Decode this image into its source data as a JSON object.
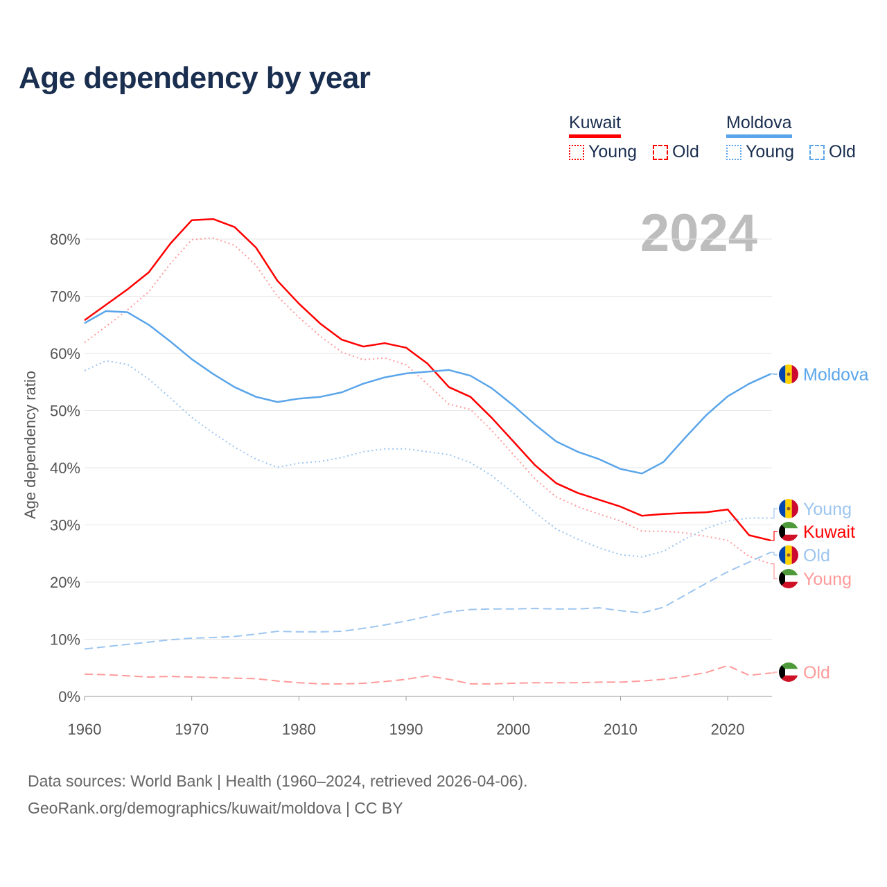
{
  "title": "Age dependency by year",
  "legend": {
    "kuwait": {
      "label": "Kuwait",
      "young": "Young",
      "old": "Old"
    },
    "moldova": {
      "label": "Moldova",
      "young": "Young",
      "old": "Old"
    }
  },
  "year_watermark": "2024",
  "source": {
    "line1": "Data sources: World Bank | Health (1960–2024, retrieved 2026-04-06).",
    "line2": "GeoRank.org/demographics/kuwait/moldova | CC BY"
  },
  "colors": {
    "kuwait": "#ff0000",
    "kuwait_light": "#ff9a9a",
    "moldova": "#5aa5ea",
    "moldova_light": "#9cc5f0",
    "title": "#1a2e4f"
  },
  "chart_data": {
    "type": "line",
    "title": "Age dependency by year",
    "xlabel": "",
    "ylabel": "Age dependency ratio",
    "xlim": [
      1960,
      2024
    ],
    "ylim": [
      0,
      80
    ],
    "x_ticks": [
      "1960",
      "1970",
      "1980",
      "1990",
      "2000",
      "2010",
      "2020"
    ],
    "y_ticks": [
      "0%",
      "10%",
      "20%",
      "30%",
      "40%",
      "50%",
      "60%",
      "70%",
      "80%"
    ],
    "grid": true,
    "x": [
      1960,
      1962,
      1964,
      1966,
      1968,
      1970,
      1972,
      1974,
      1976,
      1978,
      1980,
      1982,
      1984,
      1986,
      1988,
      1990,
      1992,
      1994,
      1996,
      1998,
      2000,
      2002,
      2004,
      2006,
      2008,
      2010,
      2012,
      2014,
      2016,
      2018,
      2020,
      2022,
      2024
    ],
    "series": [
      {
        "name": "Kuwait",
        "end_label": "Kuwait",
        "country": "kuwait",
        "style": "solid",
        "color": "#ff0000",
        "values": [
          65.8,
          68.5,
          71.2,
          74.2,
          79.2,
          83.3,
          83.5,
          82.1,
          78.5,
          72.7,
          68.7,
          65.2,
          62.4,
          61.2,
          61.8,
          61.0,
          58.2,
          54.1,
          52.4,
          48.7,
          44.6,
          40.5,
          37.3,
          35.6,
          34.4,
          33.2,
          31.6,
          31.9,
          32.1,
          32.2,
          32.7,
          28.2,
          27.3
        ]
      },
      {
        "name": "Kuwait Young",
        "end_label": "Young",
        "country": "kuwait",
        "style": "dotted",
        "color": "#ff9a9a",
        "values": [
          61.9,
          64.7,
          67.6,
          70.8,
          75.7,
          79.9,
          80.2,
          78.9,
          75.4,
          70.0,
          66.3,
          63.0,
          60.2,
          58.9,
          59.2,
          58.0,
          54.6,
          51.1,
          50.2,
          46.5,
          42.3,
          38.1,
          34.9,
          33.2,
          31.9,
          30.7,
          28.9,
          28.9,
          28.6,
          28.0,
          27.3,
          24.5,
          23.2
        ]
      },
      {
        "name": "Kuwait Old",
        "end_label": "Old",
        "country": "kuwait",
        "style": "dashed",
        "color": "#ff9a9a",
        "values": [
          3.9,
          3.8,
          3.6,
          3.4,
          3.5,
          3.4,
          3.3,
          3.2,
          3.1,
          2.7,
          2.4,
          2.2,
          2.2,
          2.3,
          2.6,
          3.0,
          3.6,
          3.0,
          2.2,
          2.2,
          2.3,
          2.4,
          2.4,
          2.4,
          2.5,
          2.5,
          2.7,
          3.0,
          3.5,
          4.2,
          5.4,
          3.7,
          4.1
        ]
      },
      {
        "name": "Moldova",
        "end_label": "Moldova",
        "country": "moldova",
        "style": "solid",
        "color": "#5aa5ea",
        "values": [
          65.3,
          67.4,
          67.2,
          65.0,
          62.1,
          59.0,
          56.4,
          54.1,
          52.4,
          51.5,
          52.1,
          52.4,
          53.2,
          54.7,
          55.8,
          56.5,
          56.8,
          57.1,
          56.1,
          53.9,
          50.9,
          47.6,
          44.6,
          42.8,
          41.5,
          39.8,
          39.0,
          41.0,
          45.2,
          49.2,
          52.5,
          54.7,
          56.4
        ]
      },
      {
        "name": "Moldova Young",
        "end_label": "Young",
        "country": "moldova",
        "style": "dotted",
        "color": "#9cc5f0",
        "values": [
          57.0,
          58.7,
          58.1,
          55.5,
          52.2,
          48.8,
          46.1,
          43.6,
          41.5,
          40.1,
          40.8,
          41.1,
          41.8,
          42.8,
          43.3,
          43.3,
          42.8,
          42.3,
          40.9,
          38.6,
          35.6,
          32.2,
          29.3,
          27.5,
          26.0,
          24.8,
          24.4,
          25.4,
          27.5,
          29.4,
          30.7,
          31.2,
          31.2
        ]
      },
      {
        "name": "Moldova Old",
        "end_label": "Old",
        "country": "moldova",
        "style": "dashed",
        "color": "#9cc5f0",
        "values": [
          8.3,
          8.7,
          9.1,
          9.5,
          9.9,
          10.2,
          10.3,
          10.5,
          10.9,
          11.4,
          11.3,
          11.3,
          11.4,
          11.9,
          12.5,
          13.2,
          14.0,
          14.8,
          15.2,
          15.3,
          15.3,
          15.4,
          15.3,
          15.3,
          15.5,
          15.0,
          14.6,
          15.6,
          17.7,
          19.8,
          21.8,
          23.5,
          25.2
        ]
      }
    ]
  }
}
